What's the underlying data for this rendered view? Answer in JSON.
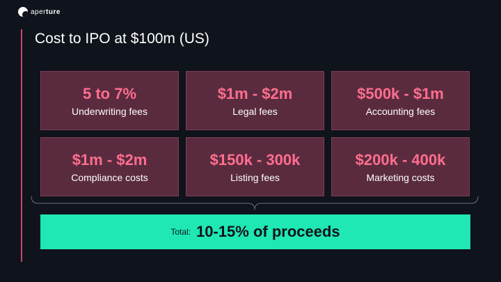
{
  "brand": {
    "name_light": "aper",
    "name_bold": "ture"
  },
  "title": "Cost to IPO at $100m (US)",
  "cards": [
    {
      "value": "5 to 7%",
      "label": "Underwriting fees"
    },
    {
      "value": "$1m - $2m",
      "label": "Legal fees"
    },
    {
      "value": "$500k - $1m",
      "label": "Accounting fees"
    },
    {
      "value": "$1m - $2m",
      "label": "Compliance costs"
    },
    {
      "value": "$150k - 300k",
      "label": "Listing fees"
    },
    {
      "value": "$200k - 400k",
      "label": "Marketing costs"
    }
  ],
  "total": {
    "label": "Total:",
    "value": "10-15% of proceeds"
  },
  "colors": {
    "background": "#0f131b",
    "card_fill": "#5a2b3e",
    "card_value": "#ff6e8f",
    "accent": "#c44a6c",
    "total_fill": "#1fe8b4"
  },
  "icons": {
    "logo": "aperture-logo-icon"
  }
}
